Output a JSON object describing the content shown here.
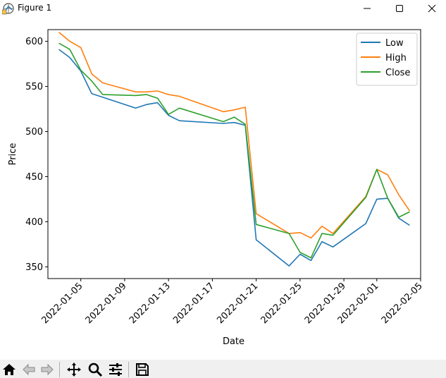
{
  "window": {
    "title": "Figure 1",
    "icon": "python-figure-icon",
    "controls": [
      "minimize-icon",
      "maximize-icon",
      "close-icon"
    ]
  },
  "toolbar": {
    "buttons": [
      {
        "name": "home-icon",
        "action": "Home"
      },
      {
        "name": "back-icon",
        "action": "Back"
      },
      {
        "name": "forward-icon",
        "action": "Forward"
      },
      {
        "name": "pan-icon",
        "action": "Pan"
      },
      {
        "name": "zoom-icon",
        "action": "Zoom"
      },
      {
        "name": "subplots-icon",
        "action": "Configure subplots"
      },
      {
        "name": "save-icon",
        "action": "Save"
      }
    ]
  },
  "colors": {
    "low": "#1f77b4",
    "high": "#ff7f0e",
    "close": "#2ca02c"
  },
  "chart_data": {
    "type": "line",
    "title": "",
    "xlabel": "Date",
    "ylabel": "Price",
    "x_ticks": [
      "2022-01-05",
      "2022-01-09",
      "2022-01-13",
      "2022-01-17",
      "2022-01-21",
      "2022-01-25",
      "2022-01-29",
      "2022-02-01",
      "2022-02-05"
    ],
    "x_tick_dates": [
      "2022-01-05",
      "2022-01-09",
      "2022-01-13",
      "2022-01-17",
      "2022-01-21",
      "2022-01-25",
      "2022-01-29",
      "2022-02-01",
      "2022-02-05"
    ],
    "y_ticks": [
      "350",
      "400",
      "450",
      "500",
      "550",
      "600"
    ],
    "y_tick_values": [
      350,
      400,
      450,
      500,
      550,
      600
    ],
    "xlim": [
      "2022-01-02",
      "2022-02-05"
    ],
    "ylim": [
      337,
      613
    ],
    "legend": {
      "position": "upper right"
    },
    "x": [
      "2022-01-03",
      "2022-01-04",
      "2022-01-05",
      "2022-01-06",
      "2022-01-07",
      "2022-01-10",
      "2022-01-11",
      "2022-01-12",
      "2022-01-13",
      "2022-01-14",
      "2022-01-18",
      "2022-01-19",
      "2022-01-20",
      "2022-01-21",
      "2022-01-24",
      "2022-01-25",
      "2022-01-26",
      "2022-01-27",
      "2022-01-28",
      "2022-01-31",
      "2022-02-01",
      "2022-02-02",
      "2022-02-03",
      "2022-02-04"
    ],
    "series": [
      {
        "name": "Low",
        "color": "#1f77b4",
        "values": [
          591,
          582,
          567,
          542,
          538,
          526,
          530,
          532,
          518,
          512,
          509,
          510,
          507,
          380,
          351,
          364,
          357,
          378,
          372,
          398,
          425,
          426,
          404,
          396
        ]
      },
      {
        "name": "High",
        "color": "#ff7f0e",
        "values": [
          610,
          600,
          593,
          564,
          554,
          544,
          544,
          545,
          541,
          539,
          522,
          524,
          527,
          409,
          387,
          388,
          382,
          395,
          387,
          428,
          458,
          452,
          430,
          412
        ]
      },
      {
        "name": "Close",
        "color": "#2ca02c",
        "values": [
          598,
          591,
          568,
          556,
          541,
          540,
          541,
          537,
          519,
          526,
          511,
          516,
          508,
          397,
          387,
          366,
          360,
          387,
          385,
          427,
          458,
          426,
          405,
          411
        ]
      }
    ]
  }
}
